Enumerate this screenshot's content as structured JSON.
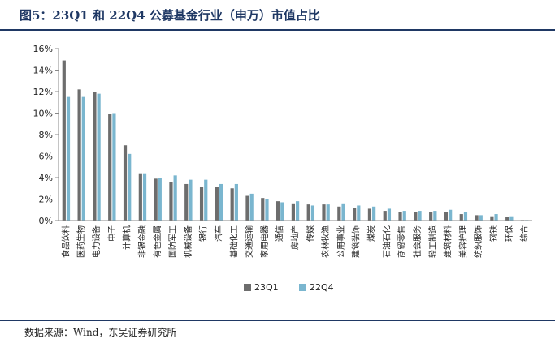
{
  "figure": {
    "title": "图5：23Q1 和 22Q4 公募基金行业（申万）市值占比",
    "source": "数据来源：Wind，东吴证券研究所"
  },
  "chart_data": {
    "type": "bar",
    "categories": [
      "食品饮料",
      "医药生物",
      "电力设备",
      "电子",
      "计算机",
      "非银金融",
      "有色金属",
      "国防军工",
      "机械设备",
      "银行",
      "汽车",
      "基础化工",
      "交通运输",
      "家用电器",
      "通信",
      "房地产",
      "传媒",
      "农林牧渔",
      "公用事业",
      "建筑装饰",
      "煤炭",
      "石油石化",
      "商贸零售",
      "社会服务",
      "轻工制造",
      "建筑材料",
      "美容护理",
      "纺织服饰",
      "钢铁",
      "环保",
      "综合"
    ],
    "series": [
      {
        "name": "23Q1",
        "color": "#6d6d6d",
        "values": [
          14.9,
          12.2,
          12.0,
          9.9,
          7.0,
          4.4,
          3.9,
          3.6,
          3.4,
          3.1,
          3.1,
          3.0,
          2.3,
          2.1,
          1.8,
          1.6,
          1.5,
          1.5,
          1.3,
          1.2,
          1.1,
          0.9,
          0.8,
          0.8,
          0.8,
          0.8,
          0.6,
          0.5,
          0.4,
          0.35,
          0.05
        ]
      },
      {
        "name": "22Q4",
        "color": "#7ab6cf",
        "values": [
          11.5,
          11.5,
          11.8,
          10.0,
          6.2,
          4.4,
          4.0,
          4.2,
          3.8,
          3.8,
          3.4,
          3.4,
          2.5,
          2.0,
          1.7,
          1.8,
          1.4,
          1.5,
          1.6,
          1.4,
          1.3,
          1.1,
          0.9,
          0.9,
          0.9,
          1.0,
          0.8,
          0.5,
          0.6,
          0.4,
          0.05
        ]
      }
    ],
    "ylim": [
      0,
      16
    ],
    "yticks": [
      "0%",
      "2%",
      "4%",
      "6%",
      "8%",
      "10%",
      "12%",
      "14%",
      "16%"
    ],
    "xlabel": "",
    "ylabel": "",
    "grid": false,
    "legend_position": "bottom"
  }
}
